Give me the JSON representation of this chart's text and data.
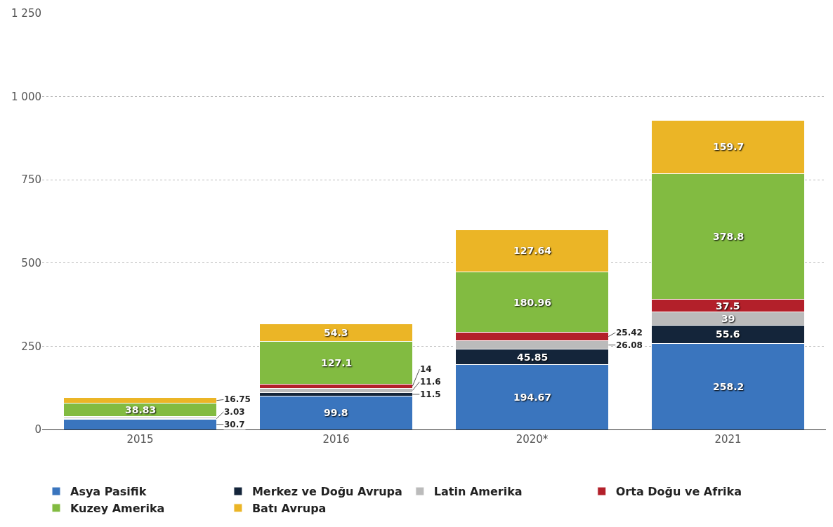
{
  "chart_data": {
    "type": "bar",
    "stacked": true,
    "categories": [
      "2015",
      "2016",
      "2020*",
      "2021"
    ],
    "series": [
      {
        "name": "Asya Pasifik",
        "color": "#3a75be",
        "values": [
          30.7,
          99.8,
          194.67,
          258.2
        ],
        "value_labels": [
          "30.7",
          "99.8",
          "194.67",
          "258.2"
        ]
      },
      {
        "name": "Merkez ve Doğu Avrupa",
        "color": "#14253a",
        "values": [
          3.03,
          11.5,
          45.85,
          55.6
        ],
        "value_labels": [
          "3.03",
          "11.5",
          "45.85",
          "55.6"
        ]
      },
      {
        "name": "Latin Amerika",
        "color": "#bbbbbb",
        "values": [
          3,
          11.6,
          26.08,
          39
        ],
        "value_labels": [
          null,
          "11.6",
          "26.08",
          "39"
        ]
      },
      {
        "name": "Orta Doğu ve Afrika",
        "color": "#b3202a",
        "values": [
          3,
          14,
          25.42,
          37.5
        ],
        "value_labels": [
          null,
          "14",
          "25.42",
          "37.5"
        ]
      },
      {
        "name": "Kuzey Amerika",
        "color": "#82bb41",
        "values": [
          38.83,
          127.1,
          180.96,
          378.8
        ],
        "value_labels": [
          "38.83",
          "127.1",
          "180.96",
          "378.8"
        ]
      },
      {
        "name": "Batı Avrupa",
        "color": "#ebb526",
        "values": [
          16.75,
          54.3,
          127.64,
          159.7
        ],
        "value_labels": [
          "16.75",
          "54.3",
          "127.64",
          "159.7"
        ]
      }
    ],
    "ylim": [
      0,
      1250
    ],
    "yticks": [
      0,
      {
        "value": 250,
        "label": "250"
      },
      {
        "value": 500,
        "label": "500"
      },
      {
        "value": 750,
        "label": "750"
      },
      {
        "value": 1000,
        "label": "1 000"
      },
      {
        "value": 1250,
        "label": "1 250"
      }
    ],
    "grid": "y",
    "legend": "bottom"
  }
}
